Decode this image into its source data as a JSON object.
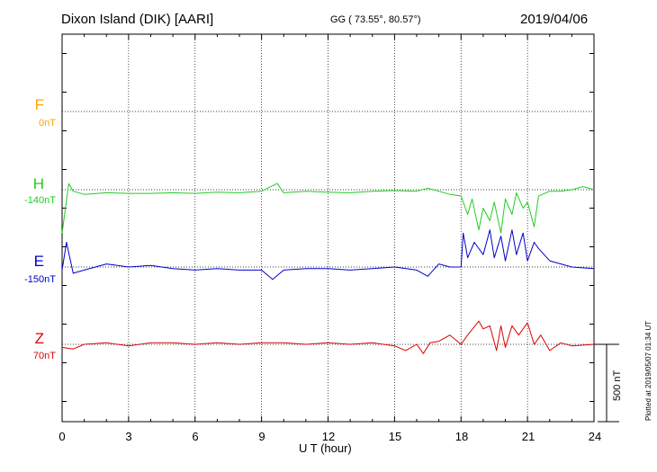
{
  "header": {
    "station": "Dixon Island (DIK)  [AARI]",
    "coords": "GG ( 73.55°,  80.57°)",
    "date": "2019/04/06"
  },
  "components": [
    {
      "name": "F",
      "baseline": "0nT",
      "color": "#FFA500"
    },
    {
      "name": "H",
      "baseline": "-140nT",
      "color": "#22CC22"
    },
    {
      "name": "E",
      "baseline": "-150nT",
      "color": "#0000CC"
    },
    {
      "name": "Z",
      "baseline": "70nT",
      "color": "#DD0000"
    }
  ],
  "scale_bar": {
    "label": "500 nT"
  },
  "footer": "Plotted at 2019/05/07 01:34 UT",
  "chart_data": {
    "type": "line",
    "title": "Dixon Island (DIK)  [AARI]",
    "xlabel": "U T (hour)",
    "ylabel": "",
    "xlim": [
      0,
      24
    ],
    "xticks": [
      "0",
      "3",
      "6",
      "9",
      "12",
      "15",
      "18",
      "21",
      "24"
    ],
    "grid": true,
    "units": "nT",
    "series": [
      {
        "name": "H",
        "color": "#22CC22",
        "x": [
          0,
          0.3,
          0.5,
          1,
          2,
          3,
          4,
          5,
          6,
          7,
          8,
          9,
          9.7,
          10,
          11,
          12,
          13,
          14,
          15,
          16,
          16.5,
          17,
          17.5,
          18,
          18.3,
          18.5,
          18.8,
          19,
          19.3,
          19.5,
          19.8,
          20,
          20.3,
          20.5,
          20.8,
          21,
          21.3,
          21.5,
          22,
          22.5,
          23,
          23.5,
          24
        ],
        "values": [
          -140,
          20,
          -5,
          -15,
          -10,
          -12,
          -12,
          -10,
          -12,
          -8,
          -10,
          -5,
          20,
          -10,
          -5,
          -8,
          -10,
          -5,
          -3,
          -5,
          5,
          -5,
          -15,
          -20,
          -80,
          -30,
          -130,
          -60,
          -100,
          -40,
          -140,
          -30,
          -80,
          -10,
          -60,
          -40,
          -120,
          -20,
          -5,
          -5,
          0,
          10,
          0
        ]
      },
      {
        "name": "E",
        "color": "#0000CC",
        "x": [
          0,
          0.2,
          0.5,
          1,
          2,
          3,
          4,
          5,
          6,
          7,
          8,
          9,
          9.5,
          10,
          11,
          12,
          13,
          14,
          15,
          16,
          16.5,
          17,
          17.5,
          18,
          18.1,
          18.3,
          18.6,
          19,
          19.3,
          19.5,
          19.8,
          20,
          20.3,
          20.5,
          20.8,
          21,
          21.3,
          21.5,
          22,
          23,
          24
        ],
        "values": [
          -10,
          80,
          -20,
          -10,
          10,
          0,
          5,
          -5,
          -10,
          -5,
          -10,
          -10,
          -40,
          -10,
          -5,
          -5,
          -10,
          -5,
          0,
          -10,
          -30,
          10,
          0,
          0,
          110,
          30,
          80,
          40,
          120,
          30,
          100,
          20,
          120,
          40,
          110,
          20,
          80,
          60,
          20,
          0,
          -5
        ]
      },
      {
        "name": "Z",
        "color": "#DD0000",
        "x": [
          0,
          0.5,
          1,
          2,
          3,
          4,
          5,
          6,
          7,
          8,
          9,
          10,
          11,
          12,
          13,
          14,
          15,
          15.5,
          16,
          16.3,
          16.6,
          17,
          17.5,
          18,
          18.3,
          18.8,
          19,
          19.3,
          19.6,
          19.8,
          20,
          20.3,
          20.6,
          21,
          21.3,
          21.6,
          22,
          22.5,
          23,
          24
        ],
        "values": [
          -10,
          -15,
          0,
          5,
          -5,
          5,
          5,
          0,
          5,
          0,
          5,
          5,
          0,
          5,
          0,
          5,
          -5,
          -20,
          0,
          -30,
          5,
          10,
          30,
          0,
          30,
          75,
          50,
          60,
          -20,
          60,
          -10,
          60,
          30,
          70,
          0,
          30,
          -20,
          5,
          -5,
          0
        ]
      }
    ]
  }
}
